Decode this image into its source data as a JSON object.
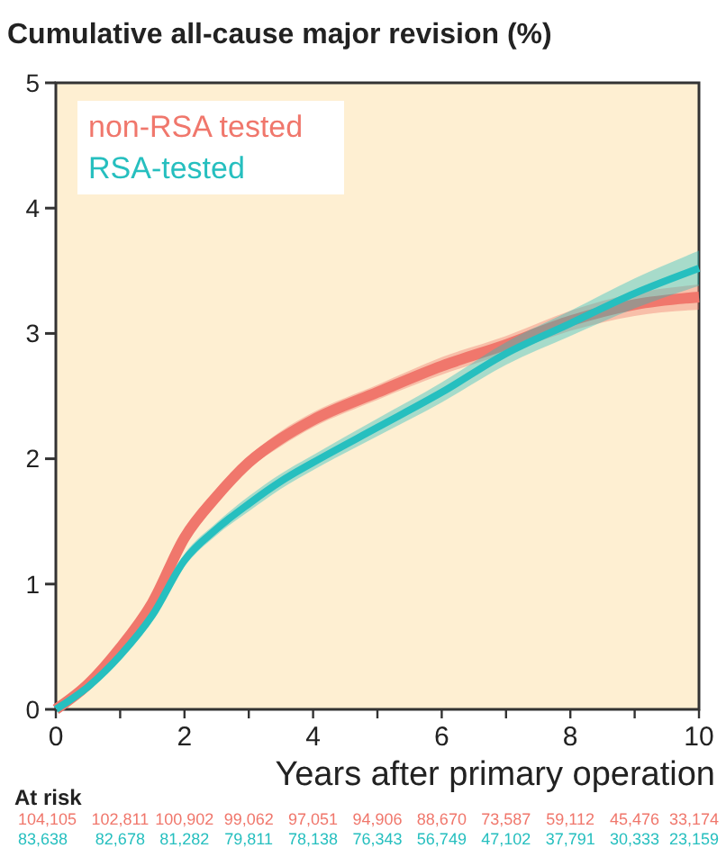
{
  "chart_data": {
    "type": "line",
    "title": "Cumulative all-cause major revision (%)",
    "xlabel": "Years after primary operation",
    "x": [
      0,
      0.5,
      1,
      1.5,
      2,
      2.5,
      3,
      3.5,
      4,
      5,
      6,
      7,
      8,
      9,
      10
    ],
    "series": [
      {
        "name": "non-RSA tested",
        "color": "#f0776c",
        "values": [
          0,
          0.2,
          0.49,
          0.85,
          1.37,
          1.7,
          1.97,
          2.16,
          2.31,
          2.53,
          2.74,
          2.91,
          3.1,
          3.23,
          3.29
        ],
        "lower": [
          0,
          0.18,
          0.46,
          0.81,
          1.32,
          1.65,
          1.92,
          2.1,
          2.25,
          2.47,
          2.67,
          2.84,
          3.02,
          3.14,
          3.19
        ],
        "upper": [
          0,
          0.22,
          0.52,
          0.89,
          1.42,
          1.75,
          2.02,
          2.22,
          2.37,
          2.59,
          2.81,
          2.98,
          3.18,
          3.32,
          3.39
        ]
      },
      {
        "name": "RSA-tested",
        "color": "#26bfbf",
        "values": [
          0,
          0.18,
          0.43,
          0.75,
          1.19,
          1.44,
          1.64,
          1.82,
          1.97,
          2.25,
          2.53,
          2.84,
          3.08,
          3.32,
          3.52
        ],
        "lower": [
          0,
          0.16,
          0.4,
          0.71,
          1.14,
          1.39,
          1.58,
          1.76,
          1.91,
          2.18,
          2.45,
          2.75,
          2.98,
          3.2,
          3.38
        ],
        "upper": [
          0,
          0.2,
          0.46,
          0.79,
          1.24,
          1.49,
          1.7,
          1.88,
          2.03,
          2.32,
          2.61,
          2.93,
          3.18,
          3.44,
          3.66
        ]
      }
    ],
    "xlim": [
      0,
      10
    ],
    "xticks": [
      0,
      2,
      4,
      6,
      8,
      10
    ],
    "ylim": [
      0,
      5
    ],
    "yticks": [
      0,
      1,
      2,
      3,
      4,
      5
    ],
    "legend": "top left",
    "grid": false,
    "annotations": [
      "At risk",
      "104,105",
      "102,811",
      "100,902",
      "99,062",
      "97,051",
      "94,906",
      "88,670",
      "73,587",
      "59,112",
      "45,476",
      "33,174",
      "83,638",
      "82,678",
      "81,282",
      "79,811",
      "78,138",
      "76,343",
      "56,749",
      "47,102",
      "37,791",
      "30,333",
      "23,159"
    ]
  }
}
